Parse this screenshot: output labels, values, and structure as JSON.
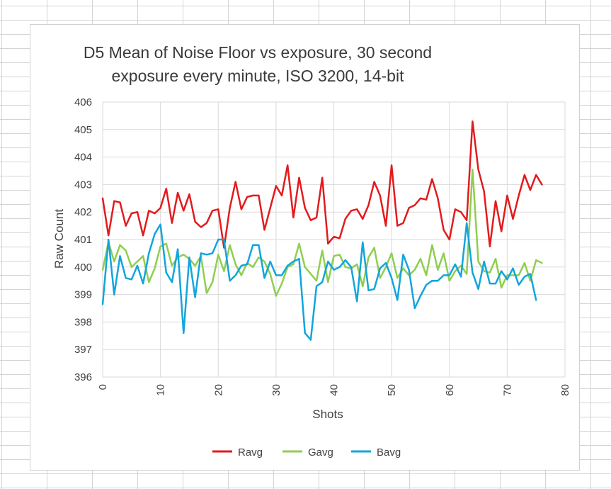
{
  "chart_data": {
    "type": "line",
    "title_lines": [
      "D5 Mean of Noise Floor vs exposure, 30 second",
      "exposure every minute, ISO 3200, 14-bit"
    ],
    "xlabel": "Shots",
    "ylabel": "Raw Count",
    "xlim": [
      0,
      80
    ],
    "ylim": [
      396,
      406
    ],
    "x_ticks": [
      0,
      10,
      20,
      30,
      40,
      50,
      60,
      70,
      80
    ],
    "y_ticks": [
      396,
      397,
      398,
      399,
      400,
      401,
      402,
      403,
      404,
      405,
      406
    ],
    "grid": true,
    "legend_position": "bottom",
    "x": [
      0,
      1,
      2,
      3,
      4,
      5,
      6,
      7,
      8,
      9,
      10,
      11,
      12,
      13,
      14,
      15,
      16,
      17,
      18,
      19,
      20,
      21,
      22,
      23,
      24,
      25,
      26,
      27,
      28,
      29,
      30,
      31,
      32,
      33,
      34,
      35,
      36,
      37,
      38,
      39,
      40,
      41,
      42,
      43,
      44,
      45,
      46,
      47,
      48,
      49,
      50,
      51,
      52,
      53,
      54,
      55,
      56,
      57,
      58,
      59,
      60,
      61,
      62,
      63,
      64,
      65,
      66,
      67,
      68,
      69,
      70,
      71,
      72,
      73,
      74,
      75,
      76
    ],
    "series": [
      {
        "name": "Ravg",
        "color": "#e31a1c",
        "values": [
          402.5,
          401.15,
          402.4,
          402.35,
          401.5,
          401.95,
          402.0,
          401.15,
          402.05,
          401.95,
          402.15,
          402.85,
          401.6,
          402.7,
          402.05,
          402.65,
          401.65,
          401.45,
          401.6,
          402.05,
          402.1,
          400.7,
          402.15,
          403.1,
          402.1,
          402.55,
          402.6,
          402.6,
          401.35,
          402.15,
          402.95,
          402.6,
          403.7,
          401.8,
          403.25,
          402.15,
          401.7,
          401.8,
          403.25,
          400.85,
          401.1,
          401.05,
          401.75,
          402.05,
          402.1,
          401.75,
          402.25,
          403.1,
          402.6,
          401.5,
          403.7,
          401.5,
          401.6,
          402.15,
          402.25,
          402.5,
          402.45,
          403.2,
          402.5,
          401.35,
          401.0,
          402.1,
          402.0,
          401.7,
          405.3,
          403.55,
          402.75,
          400.75,
          402.4,
          401.3,
          402.6,
          401.75,
          402.6,
          403.35,
          402.8,
          403.35,
          403.0
        ]
      },
      {
        "name": "Gavg",
        "color": "#8fce4f",
        "values": [
          399.9,
          400.9,
          400.2,
          400.8,
          400.6,
          400.0,
          400.2,
          400.4,
          399.45,
          399.95,
          400.75,
          400.85,
          400.05,
          400.35,
          400.45,
          400.3,
          400.05,
          400.4,
          399.05,
          399.45,
          400.45,
          399.85,
          400.8,
          400.1,
          399.7,
          400.15,
          400.0,
          400.35,
          400.2,
          399.75,
          398.95,
          399.4,
          400.0,
          400.1,
          400.85,
          400.0,
          399.75,
          399.5,
          400.6,
          399.45,
          400.4,
          400.45,
          400.0,
          399.95,
          400.1,
          399.3,
          400.35,
          400.7,
          399.6,
          400.0,
          400.5,
          399.6,
          399.95,
          399.7,
          399.9,
          400.3,
          399.7,
          400.8,
          399.9,
          400.5,
          399.5,
          399.85,
          400.05,
          399.75,
          403.55,
          400.2,
          399.85,
          399.8,
          400.3,
          399.25,
          399.7,
          399.7,
          399.7,
          400.15,
          399.5,
          400.25,
          400.15
        ]
      },
      {
        "name": "Bavg",
        "color": "#12a5dc",
        "values": [
          398.65,
          401.0,
          399.0,
          400.4,
          399.6,
          399.55,
          400.05,
          399.4,
          400.5,
          401.2,
          401.55,
          399.8,
          399.45,
          400.65,
          397.6,
          400.35,
          398.9,
          400.5,
          400.45,
          400.5,
          401.0,
          401.0,
          399.5,
          399.7,
          400.05,
          400.1,
          400.8,
          400.8,
          399.6,
          400.2,
          399.7,
          399.7,
          400.05,
          400.2,
          400.3,
          397.6,
          397.35,
          399.3,
          399.45,
          400.2,
          399.9,
          400.0,
          400.25,
          400.0,
          398.75,
          400.9,
          399.15,
          399.2,
          399.95,
          400.15,
          399.6,
          398.8,
          400.45,
          399.9,
          398.5,
          398.95,
          399.35,
          399.5,
          399.5,
          399.7,
          399.7,
          400.1,
          399.65,
          401.6,
          399.8,
          399.2,
          400.2,
          399.4,
          399.4,
          399.85,
          399.55,
          399.95,
          399.35,
          399.65,
          399.75,
          398.8,
          null
        ]
      }
    ]
  }
}
